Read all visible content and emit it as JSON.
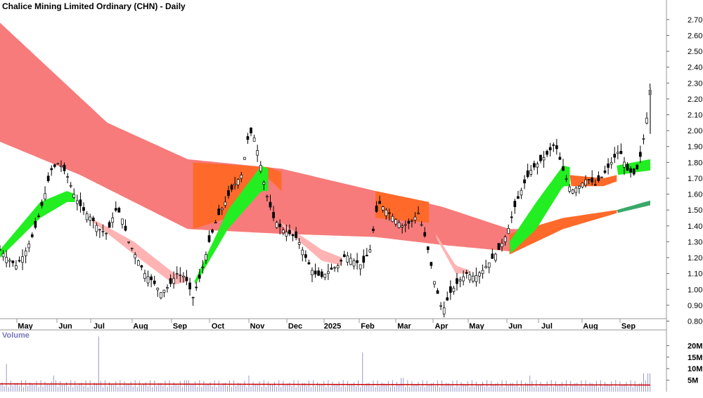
{
  "chart_data": [
    {
      "type": "candlestick",
      "title": "Chalice Mining Limited Ordinary (CHN) - Daily",
      "y_ticks": [
        "2.70",
        "2.60",
        "2.50",
        "2.40",
        "2.30",
        "2.20",
        "2.10",
        "2.00",
        "1.90",
        "1.80",
        "1.70",
        "1.60",
        "1.50",
        "1.40",
        "1.30",
        "1.20",
        "1.10",
        "1.00",
        "0.90",
        "0.80"
      ],
      "ylim": [
        0.78,
        2.77
      ],
      "x_labels": [
        "May",
        "Jun",
        "Jul",
        "Aug",
        "Sep",
        "Oct",
        "Nov",
        "Dec",
        "2025",
        "Feb",
        "Mar",
        "Apr",
        "May",
        "Jun",
        "Jul",
        "Aug",
        "Sep"
      ],
      "price_path": [
        [
          0,
          1.25
        ],
        [
          5,
          1.2
        ],
        [
          12,
          1.15
        ],
        [
          18,
          1.22
        ],
        [
          25,
          1.35
        ],
        [
          32,
          1.55
        ],
        [
          38,
          1.75
        ],
        [
          44,
          1.8
        ],
        [
          50,
          1.72
        ],
        [
          56,
          1.58
        ],
        [
          62,
          1.5
        ],
        [
          68,
          1.45
        ],
        [
          74,
          1.38
        ],
        [
          80,
          1.35
        ],
        [
          86,
          1.5
        ],
        [
          90,
          1.48
        ],
        [
          96,
          1.3
        ],
        [
          102,
          1.2
        ],
        [
          108,
          1.1
        ],
        [
          114,
          1.05
        ],
        [
          120,
          0.98
        ],
        [
          126,
          1.02
        ],
        [
          132,
          1.1
        ],
        [
          138,
          1.08
        ],
        [
          144,
          0.95
        ],
        [
          150,
          1.1
        ],
        [
          156,
          1.3
        ],
        [
          162,
          1.45
        ],
        [
          168,
          1.55
        ],
        [
          174,
          1.65
        ],
        [
          180,
          1.72
        ],
        [
          186,
          2.0
        ],
        [
          190,
          1.95
        ],
        [
          194,
          1.8
        ],
        [
          198,
          1.62
        ],
        [
          204,
          1.45
        ],
        [
          210,
          1.38
        ],
        [
          216,
          1.35
        ],
        [
          222,
          1.32
        ],
        [
          228,
          1.2
        ],
        [
          234,
          1.1
        ],
        [
          240,
          1.08
        ],
        [
          246,
          1.12
        ],
        [
          252,
          1.15
        ],
        [
          258,
          1.22
        ],
        [
          264,
          1.18
        ],
        [
          270,
          1.15
        ],
        [
          276,
          1.25
        ],
        [
          282,
          1.55
        ],
        [
          288,
          1.5
        ],
        [
          294,
          1.45
        ],
        [
          300,
          1.4
        ],
        [
          306,
          1.42
        ],
        [
          312,
          1.48
        ],
        [
          318,
          1.3
        ],
        [
          324,
          1.05
        ],
        [
          330,
          0.86
        ],
        [
          336,
          0.98
        ],
        [
          342,
          1.05
        ],
        [
          348,
          1.1
        ],
        [
          354,
          1.08
        ],
        [
          360,
          1.12
        ],
        [
          366,
          1.18
        ],
        [
          372,
          1.25
        ],
        [
          378,
          1.35
        ],
        [
          384,
          1.52
        ],
        [
          390,
          1.65
        ],
        [
          396,
          1.75
        ],
        [
          402,
          1.8
        ],
        [
          408,
          1.85
        ],
        [
          414,
          1.92
        ],
        [
          420,
          1.75
        ],
        [
          426,
          1.62
        ],
        [
          432,
          1.65
        ],
        [
          438,
          1.7
        ],
        [
          444,
          1.66
        ],
        [
          450,
          1.72
        ],
        [
          456,
          1.8
        ],
        [
          462,
          1.88
        ],
        [
          468,
          1.75
        ],
        [
          474,
          1.72
        ],
        [
          478,
          1.85
        ],
        [
          482,
          2.05
        ],
        [
          485,
          2.27
        ]
      ],
      "bands": [
        {
          "color": "#f77b7b",
          "upper": [
            [
              0,
              2.68
            ],
            [
              80,
              2.05
            ],
            [
              140,
              1.82
            ],
            [
              210,
              1.76
            ],
            [
              280,
              1.62
            ],
            [
              330,
              1.52
            ],
            [
              380,
              1.38
            ],
            [
              400,
              1.38
            ]
          ],
          "lower": [
            [
              0,
              1.93
            ],
            [
              60,
              1.72
            ],
            [
              140,
              1.38
            ],
            [
              210,
              1.35
            ],
            [
              280,
              1.33
            ],
            [
              330,
              1.28
            ],
            [
              380,
              1.24
            ],
            [
              400,
              1.3
            ]
          ]
        },
        {
          "color": "#ff6a2a",
          "upper": [
            [
              144,
              1.8
            ],
            [
              200,
              1.77
            ],
            [
              210,
              1.74
            ]
          ],
          "lower": [
            [
              144,
              1.38
            ],
            [
              170,
              1.45
            ],
            [
              200,
              1.7
            ],
            [
              210,
              1.62
            ]
          ]
        },
        {
          "color": "#ff6a2a",
          "upper": [
            [
              280,
              1.62
            ],
            [
              320,
              1.55
            ]
          ],
          "lower": [
            [
              280,
              1.45
            ],
            [
              320,
              1.42
            ]
          ]
        },
        {
          "color": "#ff6a2a",
          "upper": [
            [
              380,
              1.35
            ],
            [
              420,
              1.45
            ],
            [
              460,
              1.5
            ]
          ],
          "lower": [
            [
              380,
              1.22
            ],
            [
              420,
              1.38
            ],
            [
              460,
              1.48
            ]
          ]
        },
        {
          "color": "#3aa86a",
          "upper": [
            [
              460,
              1.5
            ],
            [
              485,
              1.56
            ]
          ],
          "lower": [
            [
              460,
              1.48
            ],
            [
              485,
              1.53
            ]
          ]
        },
        {
          "color": "#ffb3b3",
          "upper": [
            [
              70,
              1.44
            ],
            [
              100,
              1.3
            ],
            [
              130,
              1.1
            ],
            [
              140,
              1.08
            ]
          ],
          "lower": [
            [
              70,
              1.42
            ],
            [
              100,
              1.22
            ],
            [
              130,
              1.03
            ],
            [
              140,
              1.05
            ]
          ]
        },
        {
          "color": "#ffb3b3",
          "upper": [
            [
              210,
              1.42
            ],
            [
              240,
              1.25
            ],
            [
              255,
              1.2
            ]
          ],
          "lower": [
            [
              210,
              1.4
            ],
            [
              240,
              1.18
            ],
            [
              255,
              1.15
            ]
          ]
        },
        {
          "color": "#ffb3b3",
          "upper": [
            [
              325,
              1.35
            ],
            [
              340,
              1.15
            ],
            [
              350,
              1.12
            ]
          ],
          "lower": [
            [
              325,
              1.33
            ],
            [
              340,
              1.1
            ],
            [
              350,
              1.1
            ]
          ]
        },
        {
          "color": "#22ee22",
          "upper": [
            [
              0,
              1.25
            ],
            [
              30,
              1.55
            ],
            [
              50,
              1.62
            ],
            [
              56,
              1.6
            ]
          ],
          "lower": [
            [
              0,
              1.2
            ],
            [
              30,
              1.45
            ],
            [
              50,
              1.55
            ],
            [
              56,
              1.55
            ]
          ]
        },
        {
          "color": "#22ee22",
          "upper": [
            [
              145,
              1.05
            ],
            [
              170,
              1.5
            ],
            [
              195,
              1.78
            ],
            [
              200,
              1.76
            ]
          ],
          "lower": [
            [
              145,
              1.02
            ],
            [
              170,
              1.38
            ],
            [
              195,
              1.62
            ],
            [
              200,
              1.62
            ]
          ]
        },
        {
          "color": "#22ee22",
          "upper": [
            [
              380,
              1.3
            ],
            [
              400,
              1.55
            ],
            [
              420,
              1.78
            ],
            [
              425,
              1.77
            ]
          ],
          "lower": [
            [
              380,
              1.22
            ],
            [
              400,
              1.38
            ],
            [
              420,
              1.65
            ],
            [
              425,
              1.65
            ]
          ]
        },
        {
          "color": "#ff6a2a",
          "upper": [
            [
              425,
              1.72
            ],
            [
              450,
              1.7
            ],
            [
              460,
              1.72
            ]
          ],
          "lower": [
            [
              425,
              1.65
            ],
            [
              450,
              1.65
            ],
            [
              460,
              1.68
            ]
          ]
        },
        {
          "color": "#22ee22",
          "upper": [
            [
              460,
              1.78
            ],
            [
              485,
              1.82
            ]
          ],
          "lower": [
            [
              460,
              1.72
            ],
            [
              485,
              1.75
            ]
          ]
        }
      ]
    },
    {
      "type": "bar",
      "title": "Volume",
      "y_ticks": [
        "20M",
        "15M",
        "10M",
        "5M"
      ],
      "ylim": [
        0,
        25
      ],
      "spikes": [
        [
          5,
          12
        ],
        [
          40,
          7
        ],
        [
          73,
          24
        ],
        [
          140,
          5
        ],
        [
          185,
          7
        ],
        [
          270,
          17
        ],
        [
          300,
          6
        ],
        [
          395,
          7
        ],
        [
          480,
          8
        ],
        [
          484,
          8
        ]
      ],
      "ma_level": 3.4
    }
  ]
}
